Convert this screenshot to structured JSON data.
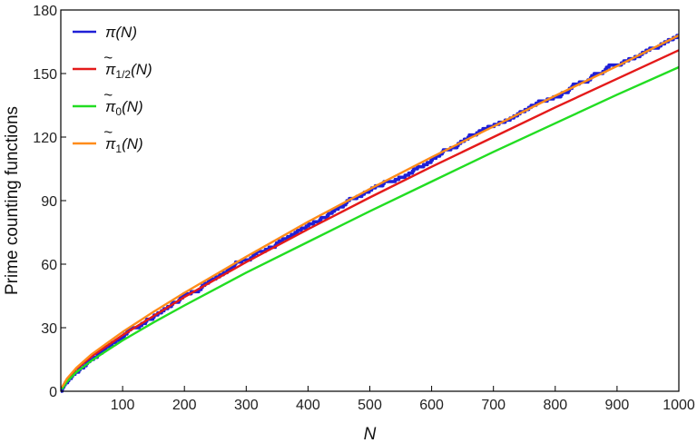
{
  "chart_data": {
    "type": "line",
    "title": "",
    "xlabel": "N",
    "ylabel": "Prime counting functions",
    "xlim": [
      0,
      1000
    ],
    "ylim": [
      0,
      180
    ],
    "xticks": [
      100,
      200,
      300,
      400,
      500,
      600,
      700,
      800,
      900,
      1000
    ],
    "yticks": [
      0,
      30,
      60,
      90,
      120,
      150,
      180
    ],
    "grid": false,
    "legend_position": "top-left",
    "series": [
      {
        "name": "π(N)",
        "legend": {
          "base": "π",
          "sub": "",
          "tilde": false,
          "arg": "(N)"
        },
        "color": "#1f1fd6",
        "style": "step",
        "x": [
          0,
          2,
          3,
          5,
          7,
          11,
          13,
          17,
          19,
          23,
          29,
          31,
          37,
          41,
          43,
          47,
          53,
          59,
          61,
          67,
          71,
          73,
          79,
          83,
          89,
          97,
          101,
          103,
          107,
          109,
          113,
          127,
          131,
          137,
          139,
          149,
          151,
          157,
          163,
          167,
          173,
          179,
          181,
          191,
          193,
          197,
          199,
          211,
          223,
          227,
          229,
          233,
          239,
          241,
          251,
          257,
          263,
          269,
          271,
          277,
          281,
          283,
          293,
          307,
          311,
          313,
          317,
          331,
          337,
          347,
          349,
          353,
          359,
          367,
          373,
          379,
          383,
          389,
          397,
          401,
          409,
          419,
          421,
          431,
          433,
          439,
          443,
          449,
          457,
          461,
          463,
          467,
          479,
          487,
          491,
          499,
          503,
          509,
          521,
          523,
          541,
          547,
          557,
          563,
          569,
          571,
          577,
          587,
          593,
          599,
          601,
          607,
          613,
          617,
          619,
          631,
          641,
          643,
          647,
          653,
          659,
          661,
          673,
          677,
          683,
          691,
          701,
          709,
          719,
          727,
          733,
          739,
          743,
          751,
          757,
          761,
          769,
          773,
          787,
          797,
          809,
          811,
          821,
          823,
          827,
          829,
          839,
          853,
          857,
          859,
          863,
          877,
          881,
          883,
          887,
          907,
          911,
          919,
          929,
          937,
          941,
          947,
          953,
          967,
          971,
          977,
          983,
          991,
          997,
          1000
        ],
        "y": [
          0,
          1,
          2,
          3,
          4,
          5,
          6,
          7,
          8,
          9,
          10,
          11,
          12,
          13,
          14,
          15,
          16,
          17,
          18,
          19,
          20,
          21,
          22,
          23,
          24,
          25,
          26,
          27,
          28,
          29,
          30,
          31,
          32,
          33,
          34,
          35,
          36,
          37,
          38,
          39,
          40,
          41,
          42,
          43,
          44,
          45,
          46,
          47,
          48,
          49,
          50,
          51,
          52,
          53,
          54,
          55,
          56,
          57,
          58,
          59,
          60,
          61,
          62,
          63,
          64,
          65,
          66,
          67,
          68,
          69,
          70,
          71,
          72,
          73,
          74,
          75,
          76,
          77,
          78,
          79,
          80,
          81,
          82,
          83,
          84,
          85,
          86,
          87,
          88,
          89,
          90,
          91,
          92,
          93,
          94,
          95,
          96,
          97,
          98,
          99,
          100,
          101,
          102,
          103,
          104,
          105,
          106,
          107,
          108,
          109,
          110,
          111,
          112,
          113,
          114,
          115,
          116,
          117,
          118,
          119,
          120,
          121,
          122,
          123,
          124,
          125,
          126,
          127,
          128,
          129,
          130,
          131,
          132,
          133,
          134,
          135,
          136,
          137,
          138,
          139,
          140,
          141,
          142,
          143,
          144,
          145,
          146,
          147,
          148,
          149,
          150,
          151,
          152,
          153,
          154,
          155,
          156,
          157,
          158,
          159,
          160,
          161,
          162,
          163,
          164,
          165,
          166,
          167,
          168,
          168
        ]
      },
      {
        "name": "π̃1/2(N)",
        "legend": {
          "base": "π",
          "sub": "1/2",
          "tilde": true,
          "arg": "(N)"
        },
        "color": "#e41a1a",
        "style": "line",
        "x": [
          2,
          10,
          25,
          50,
          100,
          150,
          200,
          300,
          400,
          500,
          600,
          700,
          800,
          900,
          1000
        ],
        "y": [
          1.5,
          5.5,
          10.5,
          16.5,
          26.5,
          35.5,
          44.5,
          61.0,
          76.5,
          91.5,
          106.0,
          120.0,
          134.0,
          147.5,
          161.0
        ]
      },
      {
        "name": "π̃0(N)",
        "legend": {
          "base": "π",
          "sub": "0",
          "tilde": true,
          "arg": "(N)"
        },
        "color": "#22dd22",
        "style": "line",
        "x": [
          2,
          10,
          25,
          50,
          100,
          150,
          200,
          300,
          400,
          500,
          600,
          700,
          800,
          900,
          1000
        ],
        "y": [
          1.0,
          4.5,
          9.0,
          14.5,
          24.0,
          32.5,
          40.5,
          56.0,
          70.5,
          85.0,
          99.0,
          113.0,
          126.5,
          140.0,
          153.0
        ]
      },
      {
        "name": "π̃1(N)",
        "legend": {
          "base": "π",
          "sub": "1",
          "tilde": true,
          "arg": "(N)"
        },
        "color": "#ff8c1a",
        "style": "line",
        "x": [
          2,
          10,
          25,
          50,
          100,
          150,
          200,
          300,
          400,
          500,
          600,
          700,
          800,
          900,
          1000
        ],
        "y": [
          2.0,
          6.0,
          11.0,
          17.5,
          28.0,
          37.5,
          46.5,
          63.5,
          80.0,
          95.5,
          110.5,
          125.0,
          139.5,
          153.5,
          168.0
        ]
      }
    ]
  }
}
